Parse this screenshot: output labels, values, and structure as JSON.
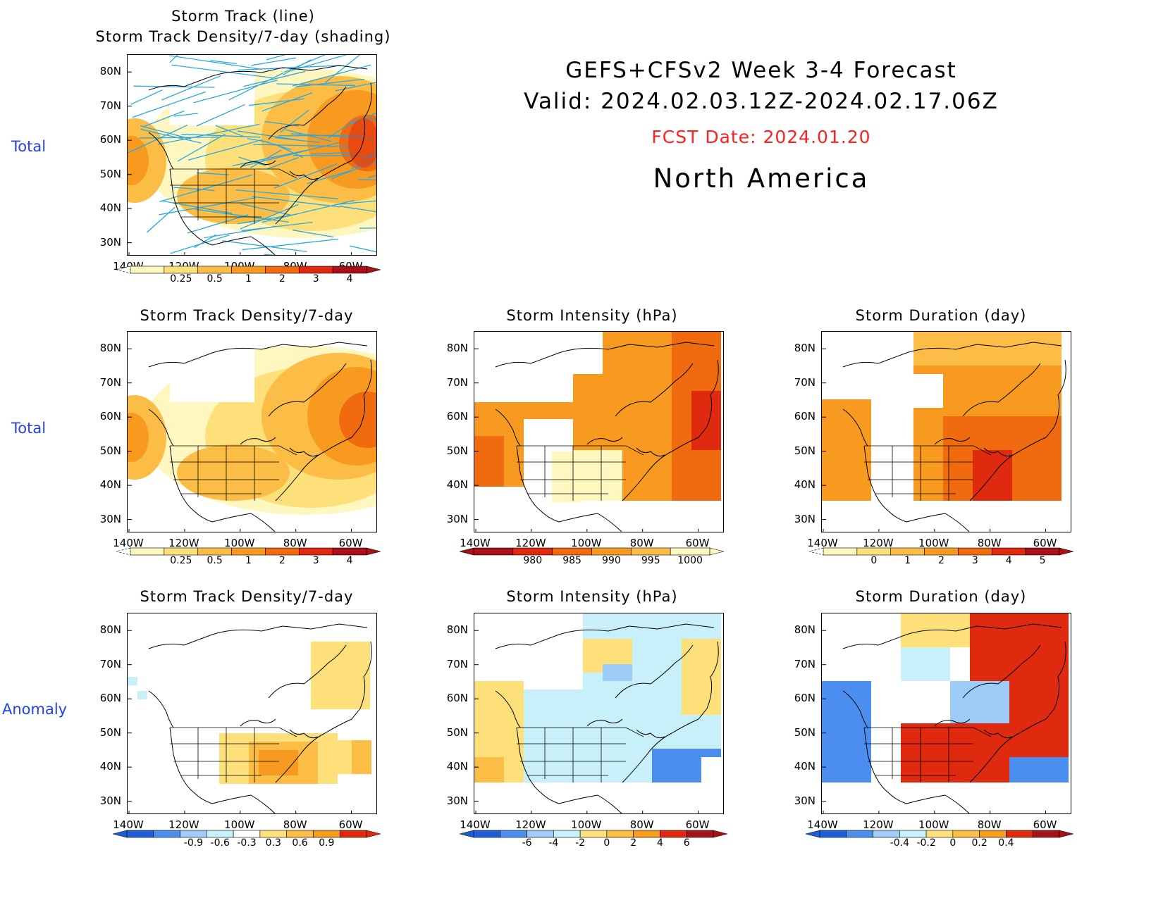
{
  "main": {
    "title_line1": "GEFS+CFSv2 Week 3-4 Forecast",
    "title_line2": "Valid: 2024.02.03.12Z-2024.02.17.06Z",
    "fcst_date": "FCST Date: 2024.01.20",
    "region": "North America"
  },
  "rows": {
    "total1": "Total",
    "total2": "Total",
    "anomaly": "Anomaly"
  },
  "panels": {
    "track_title_1": "Storm Track (line)",
    "track_title_2": "Storm Track Density/7-day (shading)",
    "density_total": "Storm Track Density/7-day",
    "intensity_total": "Storm Intensity (hPa)",
    "duration_total": "Storm Duration (day)",
    "density_anom": "Storm Track Density/7-day",
    "intensity_anom": "Storm Intensity (hPa)",
    "duration_anom": "Storm Duration (day)"
  },
  "axes": {
    "lat_labels": [
      "80N",
      "70N",
      "60N",
      "50N",
      "40N",
      "30N"
    ],
    "lon_labels": [
      "140W",
      "120W",
      "100W",
      "80W",
      "60W"
    ]
  },
  "colorbars": {
    "density_total": {
      "labels": [
        "0.25",
        "0.5",
        "1",
        "2",
        "3",
        "4"
      ],
      "colors": [
        "#fff6c0",
        "#fde07a",
        "#fbbd45",
        "#f99a20",
        "#f06a10",
        "#e02a10",
        "#a8101a"
      ]
    },
    "intensity_total": {
      "labels": [
        "980",
        "985",
        "990",
        "995",
        "1000"
      ],
      "colors": [
        "#a8101a",
        "#e02a10",
        "#f06a10",
        "#f99a20",
        "#fbbd45",
        "#fff6c0"
      ]
    },
    "duration_total": {
      "labels": [
        "0",
        "1",
        "2",
        "3",
        "4",
        "5"
      ],
      "colors": [
        "#fff6c0",
        "#fde07a",
        "#fbbd45",
        "#f99a20",
        "#f06a10",
        "#e02a10",
        "#a8101a"
      ]
    },
    "density_anom": {
      "labels": [
        "-0.9",
        "-0.6",
        "-0.3",
        "0.3",
        "0.6",
        "0.9"
      ],
      "colors": [
        "#1e5fd8",
        "#4b8ef0",
        "#9cccf7",
        "#c8f0fa",
        "#ffffff",
        "#fde07a",
        "#fbbd45",
        "#f99a20",
        "#e02a10"
      ]
    },
    "intensity_anom": {
      "labels": [
        "-6",
        "-4",
        "-2",
        "0",
        "2",
        "4",
        "6"
      ],
      "colors": [
        "#1e5fd8",
        "#4b8ef0",
        "#9cccf7",
        "#c8f0fa",
        "#fde07a",
        "#fbbd45",
        "#f99a20",
        "#e02a10",
        "#a8101a"
      ]
    },
    "duration_anom": {
      "labels": [
        "-0.4",
        "-0.2",
        "0",
        "0.2",
        "0.4"
      ],
      "colors": [
        "#1e5fd8",
        "#4b8ef0",
        "#9cccf7",
        "#c8f0fa",
        "#fde07a",
        "#fbbd45",
        "#f99a20",
        "#e02a10",
        "#a8101a"
      ]
    }
  },
  "colors": {
    "track_line": "#2aa7e0",
    "row_label": "#1f3fff",
    "fcst_date": "#ff2020"
  }
}
